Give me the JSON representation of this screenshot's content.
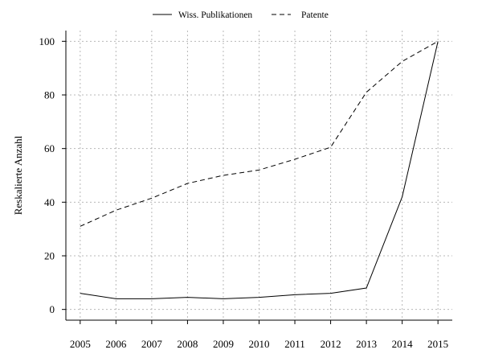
{
  "chart_data": {
    "type": "line",
    "title": "",
    "xlabel": "",
    "ylabel": "Reskalierte Anzahl",
    "x": [
      2005,
      2006,
      2007,
      2008,
      2009,
      2010,
      2011,
      2012,
      2013,
      2014,
      2015
    ],
    "xticks": [
      "2005",
      "2006",
      "2007",
      "2008",
      "2009",
      "2010",
      "2011",
      "2012",
      "2013",
      "2014",
      "2015"
    ],
    "yticks": [
      0,
      20,
      40,
      60,
      80,
      100
    ],
    "ylim": [
      -4,
      104
    ],
    "xlim": [
      2004.6,
      2015.4
    ],
    "grid": true,
    "legend_position": "top-center",
    "series": [
      {
        "name": "Wiss. Publikationen",
        "line_style": "solid",
        "values": [
          6,
          4,
          4,
          4.5,
          4,
          4.5,
          5.5,
          6,
          8,
          42,
          100
        ]
      },
      {
        "name": "Patente",
        "line_style": "dashed",
        "values": [
          31,
          37,
          41.5,
          47,
          50,
          52,
          56,
          60.5,
          81,
          92.5,
          100
        ]
      }
    ]
  }
}
